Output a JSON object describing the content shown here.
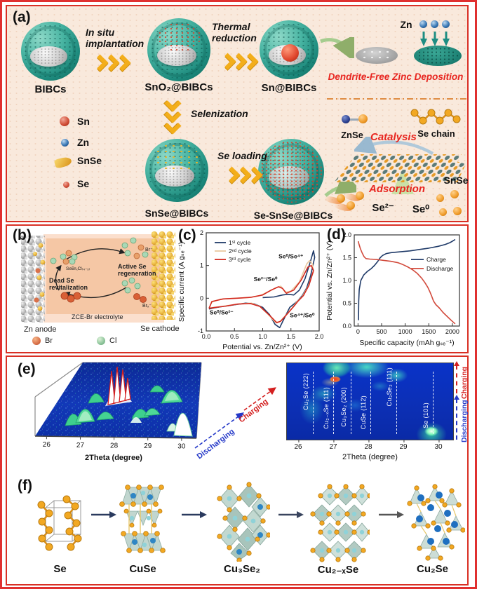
{
  "colors": {
    "frame_red": "#d93025",
    "panel_a_bg": "#f9e9dc",
    "chevron_yellow": "#f3ae1b",
    "charging_red": "#d42020",
    "discharging_blue": "#2438c8",
    "dendrite_red": "#e8251f"
  },
  "panel_a": {
    "label": "(a)",
    "bibcs": "BIBCs",
    "step1": "In situ implantation",
    "sno2": "SnO₂@BIBCs",
    "step2": "Thermal reduction",
    "sn": "Sn@BIBCs",
    "zn": "Zn",
    "dendrite": "Dendrite-Free Zinc Deposition",
    "legend_sn": "Sn",
    "legend_zn": "Zn",
    "legend_snse": "SnSe",
    "legend_se": "Se",
    "selenization": "Selenization",
    "snse_bibcs": "SnSe@BIBCs",
    "se_loading": "Se loading",
    "se_snse_bibcs": "Se-SnSe@BIBCs",
    "znse": "ZnSe",
    "catalysis": "Catalysis",
    "se_chain": "Se chain",
    "snse": "SnSe",
    "adsorption": "Adsorption",
    "se2": "Se²⁻",
    "se0": "Se⁰"
  },
  "panel_b": {
    "label": "(b)",
    "sebrcl": "SeBrₓCl₍₄₋ₓ₎",
    "dead_se": "Dead Se revitalization",
    "active_se": "Active Se regeneration",
    "br_minus": "Br⁻",
    "brx_minus": "Brₓ⁻",
    "electrolyte": "ZCE-Br electrolyte",
    "zn_anode": "Zn anode",
    "se_cathode": "Se cathode",
    "legend_br": "Br",
    "legend_cl": "Cl"
  },
  "panel_c": {
    "label": "(c)"
  },
  "panel_d": {
    "label": "(d)"
  },
  "panel_e": {
    "label": "(e)"
  },
  "panel_f": {
    "label": "(f)",
    "phase1": "Se",
    "phase2": "CuSe",
    "phase3": "Cu₃Se₂",
    "phase4": "Cu₂₋ₓSe",
    "phase5": "Cu₂Se"
  },
  "chart_data": [
    {
      "id": "cv",
      "type": "line",
      "xlabel": "Potential vs. Zn/Zn²⁺ (V)",
      "ylabel": "Specific current (A gₛₑ⁻¹)",
      "xlim": [
        0,
        2
      ],
      "ylim": [
        -1,
        2
      ],
      "xticks": [
        0,
        0.5,
        1,
        1.5,
        2
      ],
      "xtick_labels": [
        "0.0",
        "0.5",
        "1.0",
        "1.5",
        "2.0"
      ],
      "yticks": [
        -1,
        0,
        1,
        2
      ],
      "ytick_labels": [
        "-1",
        "0",
        "1",
        "2"
      ],
      "legend_position": "top-left",
      "grid": false,
      "series": [
        {
          "name": "1ˢᵗ cycle",
          "color": "#1f3a68",
          "points": [
            [
              1.0,
              0.02
            ],
            [
              1.2,
              0.04
            ],
            [
              1.35,
              0.1
            ],
            [
              1.45,
              0.12
            ],
            [
              1.55,
              0.1
            ],
            [
              1.65,
              0.25
            ],
            [
              1.75,
              0.6
            ],
            [
              1.85,
              1.15
            ],
            [
              1.9,
              1.45
            ],
            [
              1.92,
              1.25
            ],
            [
              1.85,
              0.7
            ],
            [
              1.78,
              0.32
            ],
            [
              1.7,
              0.08
            ],
            [
              1.62,
              -0.08
            ],
            [
              1.55,
              -0.18
            ],
            [
              1.48,
              -0.28
            ],
            [
              1.4,
              -0.55
            ],
            [
              1.3,
              -0.9
            ],
            [
              1.22,
              -0.8
            ],
            [
              1.12,
              -0.5
            ],
            [
              1.0,
              -0.28
            ],
            [
              0.85,
              -0.17
            ],
            [
              0.7,
              -0.15
            ],
            [
              0.5,
              -0.2
            ],
            [
              0.3,
              -0.25
            ],
            [
              0.12,
              -0.3
            ],
            [
              0.05,
              -0.33
            ]
          ]
        },
        {
          "name": "2ⁿᵈ cycle",
          "color": "#e9c9a0",
          "points": [
            [
              0.05,
              -0.3
            ],
            [
              0.1,
              -0.12
            ],
            [
              0.25,
              -0.03
            ],
            [
              0.5,
              0.0
            ],
            [
              0.75,
              0.02
            ],
            [
              0.95,
              0.08
            ],
            [
              1.1,
              0.2
            ],
            [
              1.25,
              0.33
            ],
            [
              1.32,
              0.37
            ],
            [
              1.4,
              0.18
            ],
            [
              1.5,
              0.22
            ],
            [
              1.65,
              0.5
            ],
            [
              1.78,
              1.05
            ],
            [
              1.83,
              1.15
            ],
            [
              1.88,
              1.05
            ],
            [
              1.9,
              0.8
            ],
            [
              1.8,
              0.35
            ],
            [
              1.7,
              0.05
            ],
            [
              1.6,
              -0.12
            ],
            [
              1.52,
              -0.3
            ],
            [
              1.42,
              -0.5
            ],
            [
              1.3,
              -0.72
            ],
            [
              1.22,
              -0.73
            ],
            [
              1.1,
              -0.5
            ],
            [
              0.95,
              -0.25
            ],
            [
              0.8,
              -0.15
            ],
            [
              0.6,
              -0.17
            ],
            [
              0.4,
              -0.22
            ],
            [
              0.2,
              -0.27
            ],
            [
              0.05,
              -0.3
            ]
          ]
        },
        {
          "name": "3ʳᵈ cycle",
          "color": "#d3281f",
          "points": [
            [
              0.05,
              -0.31
            ],
            [
              0.1,
              -0.1
            ],
            [
              0.3,
              -0.02
            ],
            [
              0.55,
              0.0
            ],
            [
              0.8,
              0.03
            ],
            [
              1.0,
              0.1
            ],
            [
              1.15,
              0.25
            ],
            [
              1.28,
              0.35
            ],
            [
              1.35,
              0.3
            ],
            [
              1.42,
              0.15
            ],
            [
              1.55,
              0.25
            ],
            [
              1.68,
              0.55
            ],
            [
              1.8,
              0.95
            ],
            [
              1.86,
              1.0
            ],
            [
              1.9,
              0.85
            ],
            [
              1.82,
              0.4
            ],
            [
              1.72,
              0.08
            ],
            [
              1.62,
              -0.1
            ],
            [
              1.55,
              -0.25
            ],
            [
              1.45,
              -0.45
            ],
            [
              1.32,
              -0.7
            ],
            [
              1.25,
              -0.75
            ],
            [
              1.12,
              -0.52
            ],
            [
              0.95,
              -0.25
            ],
            [
              0.78,
              -0.16
            ],
            [
              0.55,
              -0.18
            ],
            [
              0.35,
              -0.24
            ],
            [
              0.15,
              -0.28
            ],
            [
              0.05,
              -0.31
            ]
          ]
        }
      ],
      "annotations": [
        {
          "text": "Se⁰/Se⁴⁺",
          "x": 1.5,
          "y": 1.22
        },
        {
          "text": "Se²⁻/Se⁰",
          "x": 1.05,
          "y": 0.52
        },
        {
          "text": "Se⁰/Se²⁻",
          "x": 0.27,
          "y": -0.5
        },
        {
          "text": "Se⁴⁺/Se⁰",
          "x": 1.7,
          "y": -0.58
        }
      ]
    },
    {
      "id": "gcd",
      "type": "line",
      "xlabel": "Specific capacity (mAh gₛₑ⁻¹)",
      "ylabel": "Potential vs. Zn/Zn²⁺ (V)",
      "xlim": [
        -80,
        2150
      ],
      "ylim": [
        0,
        2
      ],
      "xticks": [
        0,
        500,
        1000,
        1500,
        2000
      ],
      "xtick_labels": [
        "0",
        "500",
        "1000",
        "1500",
        "2000"
      ],
      "yticks": [
        0,
        0.5,
        1,
        1.5,
        2
      ],
      "ytick_labels": [
        "0.0",
        "0.5",
        "1.0",
        "1.5",
        "2.0"
      ],
      "legend_position": "middle-right",
      "grid": false,
      "series": [
        {
          "name": "Charge",
          "color": "#1f3a68",
          "points": [
            [
              10,
              0.13
            ],
            [
              15,
              0.55
            ],
            [
              25,
              0.8
            ],
            [
              60,
              1.0
            ],
            [
              120,
              1.12
            ],
            [
              200,
              1.2
            ],
            [
              280,
              1.26
            ],
            [
              350,
              1.33
            ],
            [
              420,
              1.42
            ],
            [
              470,
              1.5
            ],
            [
              520,
              1.55
            ],
            [
              600,
              1.59
            ],
            [
              700,
              1.61
            ],
            [
              900,
              1.63
            ],
            [
              1100,
              1.65
            ],
            [
              1300,
              1.68
            ],
            [
              1500,
              1.71
            ],
            [
              1700,
              1.75
            ],
            [
              1850,
              1.79
            ],
            [
              1950,
              1.83
            ],
            [
              2030,
              1.88
            ],
            [
              2060,
              1.9
            ]
          ]
        },
        {
          "name": "Discharge",
          "color": "#d24a3c",
          "points": [
            [
              5,
              1.86
            ],
            [
              20,
              1.8
            ],
            [
              50,
              1.7
            ],
            [
              90,
              1.6
            ],
            [
              130,
              1.52
            ],
            [
              170,
              1.48
            ],
            [
              250,
              1.47
            ],
            [
              400,
              1.46
            ],
            [
              550,
              1.44
            ],
            [
              700,
              1.42
            ],
            [
              850,
              1.39
            ],
            [
              950,
              1.35
            ],
            [
              1050,
              1.3
            ],
            [
              1150,
              1.24
            ],
            [
              1250,
              1.16
            ],
            [
              1350,
              1.05
            ],
            [
              1420,
              0.95
            ],
            [
              1480,
              0.85
            ],
            [
              1520,
              0.76
            ],
            [
              1560,
              0.66
            ],
            [
              1600,
              0.55
            ],
            [
              1650,
              0.47
            ],
            [
              1720,
              0.4
            ],
            [
              1800,
              0.3
            ],
            [
              1900,
              0.2
            ],
            [
              1980,
              0.12
            ],
            [
              2060,
              0.05
            ]
          ]
        }
      ]
    },
    {
      "id": "xrd3d",
      "type": "area",
      "xlabel": "2Theta (degree)",
      "xlim": [
        25.66,
        30.44
      ],
      "xticks": [
        26,
        27,
        28,
        29,
        30
      ],
      "direction_labels": [
        {
          "text": "Discharging",
          "color": "#2438c8"
        },
        {
          "text": "Charging",
          "color": "#d42020"
        }
      ],
      "peaks": [
        {
          "two_theta": 26.8,
          "intensity": "medium"
        },
        {
          "two_theta": 27.8,
          "intensity": "high"
        },
        {
          "two_theta": 28.3,
          "intensity": "medium"
        },
        {
          "two_theta": 29.3,
          "intensity": "medium"
        },
        {
          "two_theta": 29.85,
          "intensity": "high"
        }
      ]
    },
    {
      "id": "xrdmap",
      "type": "heatmap",
      "xlabel": "2Theta (degree)",
      "xlim": [
        25.66,
        30.44
      ],
      "xticks": [
        26,
        27,
        28,
        29,
        30
      ],
      "phase_lines": [
        {
          "label": "Cu₂Se (222)",
          "two_theta": 26.4
        },
        {
          "label": "Cu₂₋ₓSe (111)",
          "two_theta": 27.0
        },
        {
          "label": "Cu₃Se₂ (200)",
          "two_theta": 27.5
        },
        {
          "label": "CuSe (112)",
          "two_theta": 28.05
        },
        {
          "label": "Cu₃Se₂ (111)",
          "two_theta": 28.8
        },
        {
          "label": "Se (101)",
          "two_theta": 29.85
        }
      ],
      "right_labels": [
        {
          "text": "Charging",
          "color": "#d42020"
        },
        {
          "text": "Discharging",
          "color": "#2438c8"
        }
      ]
    }
  ]
}
